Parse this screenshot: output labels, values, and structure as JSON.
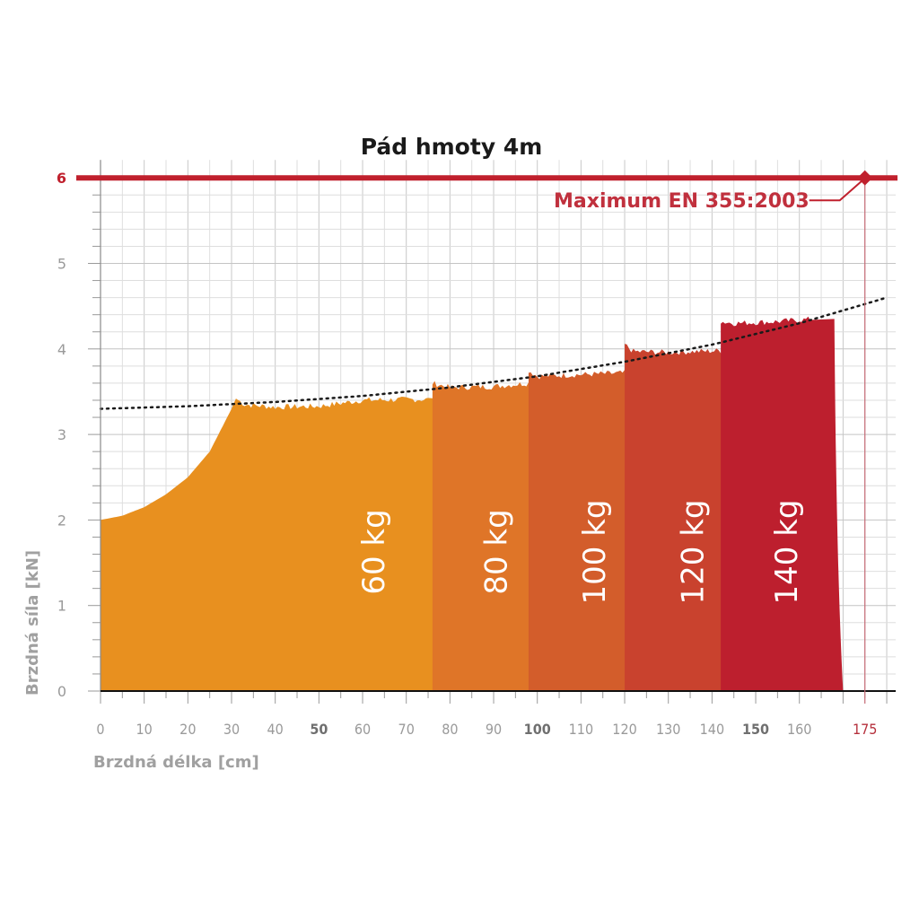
{
  "chart_data": {
    "type": "area",
    "title": "Pád hmoty 4m",
    "xlabel": "Brzdná délka [cm]",
    "ylabel": "Brzdná síla [kN]",
    "xlim": [
      0,
      180
    ],
    "ylim": [
      0,
      6
    ],
    "x_ticks": [
      0,
      10,
      20,
      30,
      40,
      50,
      60,
      70,
      80,
      90,
      100,
      110,
      120,
      130,
      140,
      150,
      160,
      175
    ],
    "x_ticks_bold": [
      50,
      100,
      150
    ],
    "x_tick_special": 175,
    "y_ticks": [
      0,
      1,
      2,
      3,
      4,
      5,
      6
    ],
    "y_tick_special": 6,
    "grid": true,
    "series": [
      {
        "name": "60 kg",
        "color": "#e8901f",
        "x_end": 79,
        "bottom_x": 80,
        "points": [
          [
            0,
            2.0
          ],
          [
            5,
            2.05
          ],
          [
            10,
            2.15
          ],
          [
            15,
            2.3
          ],
          [
            20,
            2.5
          ],
          [
            25,
            2.8
          ],
          [
            30,
            3.3
          ],
          [
            31,
            3.42
          ],
          [
            33,
            3.35
          ],
          [
            40,
            3.32
          ],
          [
            50,
            3.33
          ],
          [
            60,
            3.4
          ],
          [
            70,
            3.41
          ],
          [
            75,
            3.41
          ]
        ]
      },
      {
        "name": "80 kg",
        "color": "#df7528",
        "x_end": 101,
        "bottom_x": 103,
        "points": [
          [
            76,
            3.6
          ],
          [
            80,
            3.55
          ],
          [
            90,
            3.56
          ],
          [
            98,
            3.6
          ]
        ]
      },
      {
        "name": "100 kg",
        "color": "#d35d2b",
        "x_end": 124,
        "bottom_x": 126,
        "points": [
          [
            98,
            3.75
          ],
          [
            100,
            3.68
          ],
          [
            110,
            3.7
          ],
          [
            120,
            3.72
          ]
        ]
      },
      {
        "name": "120 kg",
        "color": "#c9422e",
        "x_end": 147,
        "bottom_x": 149,
        "points": [
          [
            120,
            4.05
          ],
          [
            122,
            3.97
          ],
          [
            130,
            3.96
          ],
          [
            142,
            3.98
          ]
        ]
      },
      {
        "name": "140 kg",
        "color": "#bd1f2e",
        "x_end": 168,
        "bottom_x": 170,
        "points": [
          [
            142,
            4.32
          ],
          [
            145,
            4.3
          ],
          [
            155,
            4.32
          ],
          [
            163,
            4.35
          ]
        ]
      }
    ],
    "trend": {
      "style": "dotted",
      "color": "#1a1a1a",
      "points": [
        [
          0,
          3.3
        ],
        [
          20,
          3.33
        ],
        [
          40,
          3.38
        ],
        [
          60,
          3.45
        ],
        [
          80,
          3.55
        ],
        [
          100,
          3.68
        ],
        [
          120,
          3.85
        ],
        [
          140,
          4.05
        ],
        [
          160,
          4.3
        ],
        [
          180,
          4.6
        ]
      ]
    },
    "limit": {
      "value": 6,
      "color": "#c0202d",
      "label": "Maximum EN 355:2003",
      "marker_x": 175
    }
  }
}
